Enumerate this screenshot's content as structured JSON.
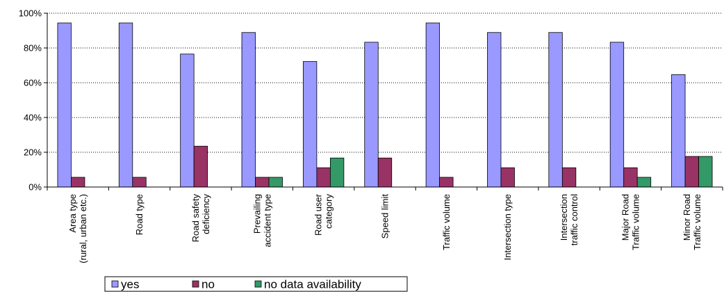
{
  "chart_data": {
    "type": "bar",
    "categories": [
      [
        "Area type",
        "(rural, urban etc.)"
      ],
      [
        "Road type"
      ],
      [
        "Road safety",
        "deficiency"
      ],
      [
        "Prevailing",
        "accident type"
      ],
      [
        "Road user",
        "category"
      ],
      [
        "Speed limit"
      ],
      [
        "Traffic volume"
      ],
      [
        "Intersection type"
      ],
      [
        "Intersection",
        "traffic control"
      ],
      [
        "Major Road",
        "Traffic volume"
      ],
      [
        "Minor Road",
        "Traffic volume"
      ]
    ],
    "series": [
      {
        "name": "yes",
        "color": "#9999ff",
        "values": [
          94.4,
          94.4,
          76.5,
          88.9,
          72.2,
          83.3,
          94.4,
          88.9,
          88.9,
          83.3,
          64.7
        ]
      },
      {
        "name": "no",
        "color": "#993366",
        "values": [
          5.6,
          5.6,
          23.5,
          5.6,
          11.1,
          16.7,
          5.6,
          11.1,
          11.1,
          11.1,
          17.6
        ]
      },
      {
        "name": "no data availability",
        "color": "#339966",
        "values": [
          0,
          0,
          0,
          5.6,
          16.7,
          0,
          0,
          0,
          0,
          5.6,
          17.6
        ]
      }
    ],
    "yticks": [
      "0%",
      "20%",
      "40%",
      "60%",
      "80%",
      "100%"
    ],
    "ylim": [
      0,
      100
    ],
    "grid": "horizontal dotted",
    "legend": "bottom"
  }
}
